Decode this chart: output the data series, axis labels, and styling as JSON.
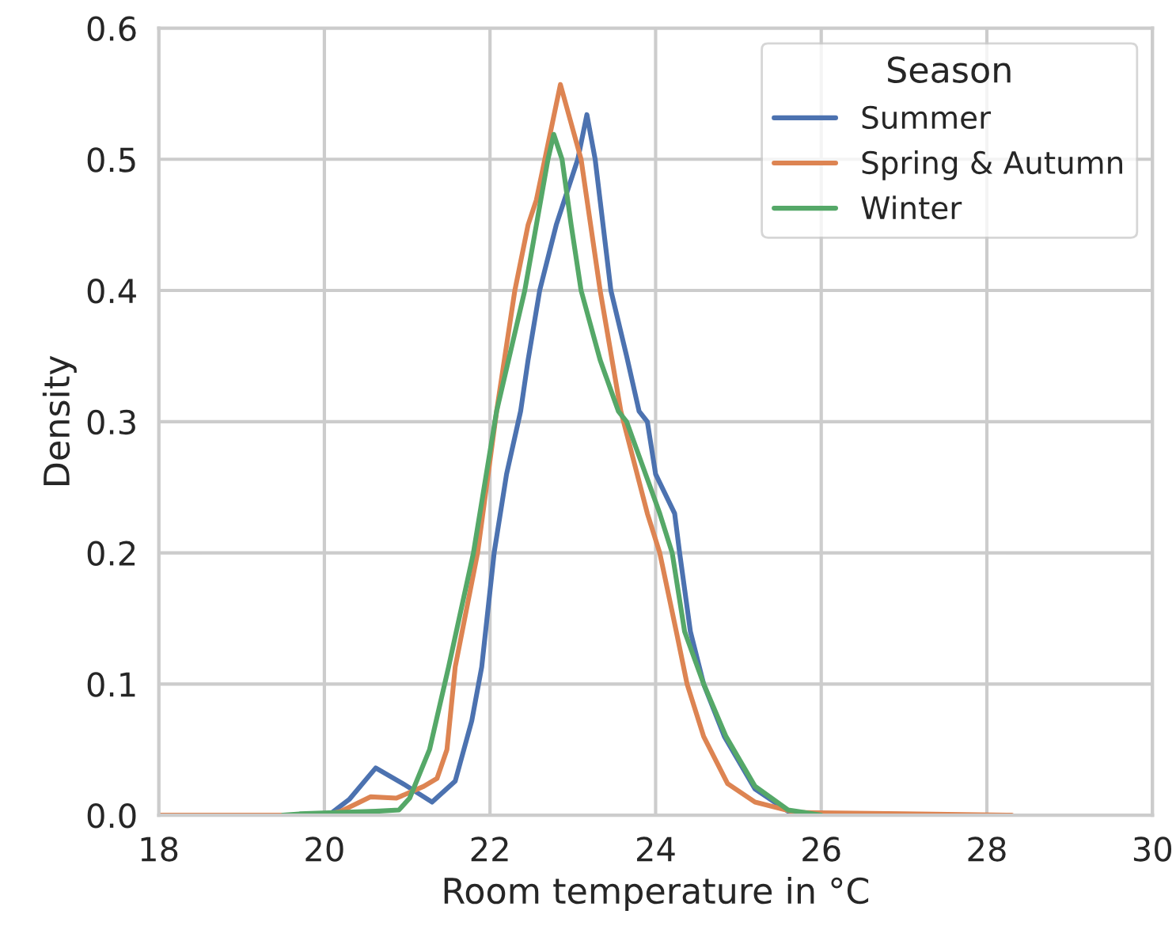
{
  "chart_data": {
    "type": "line",
    "xlabel": "Room temperature in °C",
    "ylabel": "Density",
    "legend_title": "Season",
    "legend": "top right",
    "grid": true,
    "xlim": [
      18,
      30
    ],
    "ylim": [
      0,
      0.6
    ],
    "xticks": [
      18,
      20,
      22,
      24,
      26,
      28,
      30
    ],
    "yticks": [
      {
        "value": 0,
        "label": "0.0"
      },
      0.1,
      0.2,
      0.3,
      0.4,
      0.5,
      0.6
    ],
    "series": [
      {
        "name": "Summer",
        "color": "#4c72b0",
        "x": [
          19.8,
          20.05,
          20.3,
          20.62,
          20.95,
          21.3,
          21.58,
          21.78,
          21.9,
          22.05,
          22.2,
          22.37,
          22.46,
          22.6,
          22.8,
          23.06,
          23.17,
          23.27,
          23.46,
          23.65,
          23.8,
          23.9,
          24.0,
          24.23,
          24.29,
          24.42,
          24.58,
          24.83,
          25.2,
          25.6,
          26.0
        ],
        "values": [
          0,
          0,
          0.012,
          0.036,
          0.024,
          0.01,
          0.026,
          0.072,
          0.113,
          0.2,
          0.26,
          0.308,
          0.347,
          0.4,
          0.45,
          0.5,
          0.534,
          0.5,
          0.4,
          0.35,
          0.308,
          0.3,
          0.26,
          0.23,
          0.2,
          0.14,
          0.1,
          0.06,
          0.02,
          0.003,
          0
        ]
      },
      {
        "name": "Spring & Autumn",
        "color": "#dd8452",
        "x": [
          18.0,
          20.0,
          20.2,
          20.56,
          20.87,
          21.2,
          21.36,
          21.48,
          21.58,
          21.85,
          22.08,
          22.3,
          22.46,
          22.56,
          22.85,
          23.1,
          23.33,
          23.58,
          23.9,
          24.05,
          24.25,
          24.38,
          24.58,
          24.87,
          25.2,
          25.7,
          27.0,
          28.3
        ],
        "values": [
          0,
          0,
          0.003,
          0.014,
          0.013,
          0.022,
          0.028,
          0.05,
          0.113,
          0.2,
          0.308,
          0.4,
          0.45,
          0.469,
          0.557,
          0.5,
          0.4,
          0.308,
          0.23,
          0.2,
          0.14,
          0.1,
          0.06,
          0.024,
          0.01,
          0.002,
          0.001,
          0
        ]
      },
      {
        "name": "Winter",
        "color": "#55a868",
        "x": [
          19.5,
          19.7,
          20.62,
          20.9,
          21.03,
          21.27,
          21.5,
          21.8,
          22.08,
          22.42,
          22.7,
          22.77,
          22.87,
          22.98,
          23.1,
          23.33,
          23.55,
          23.65,
          24.05,
          24.2,
          24.35,
          24.58,
          24.85,
          25.2,
          25.6,
          26.0
        ],
        "values": [
          0,
          0.001,
          0.003,
          0.004,
          0.013,
          0.05,
          0.113,
          0.2,
          0.308,
          0.4,
          0.5,
          0.519,
          0.5,
          0.45,
          0.4,
          0.347,
          0.308,
          0.3,
          0.23,
          0.2,
          0.14,
          0.1,
          0.06,
          0.022,
          0.004,
          0
        ]
      }
    ]
  }
}
